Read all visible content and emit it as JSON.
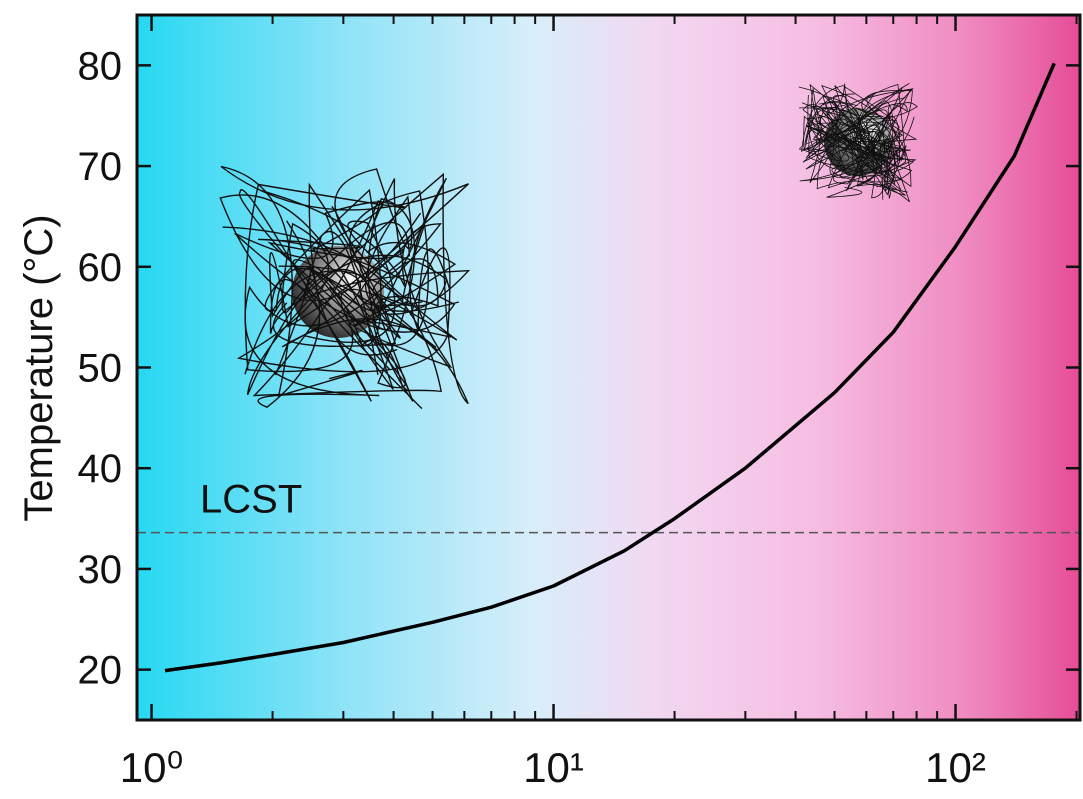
{
  "chart_data": {
    "type": "line",
    "ylabel": "Temperature (°C)",
    "xlog": true,
    "xlim": [
      0.92,
      204
    ],
    "xticks": [
      {
        "value": 1,
        "label": "10⁰"
      },
      {
        "value": 10,
        "label": "10¹"
      },
      {
        "value": 100,
        "label": "10²"
      }
    ],
    "xticks_minor": [
      2,
      3,
      4,
      5,
      6,
      7,
      8,
      9,
      20,
      30,
      40,
      50,
      60,
      70,
      80,
      90,
      200
    ],
    "ylim": [
      15,
      85
    ],
    "yticks": [
      20,
      30,
      40,
      50,
      60,
      70,
      80
    ],
    "x": [
      1.08,
      1.5,
      2,
      3,
      5,
      7,
      10,
      15,
      20,
      30,
      50,
      70,
      100,
      140,
      176
    ],
    "values": [
      19.9,
      20.7,
      21.5,
      22.7,
      24.7,
      26.2,
      28.3,
      31.8,
      35.0,
      40.0,
      47.5,
      53.5,
      62.0,
      71.0,
      80.2
    ],
    "color": "#000000",
    "hline": {
      "value": 33.6,
      "label": "LCST"
    }
  }
}
